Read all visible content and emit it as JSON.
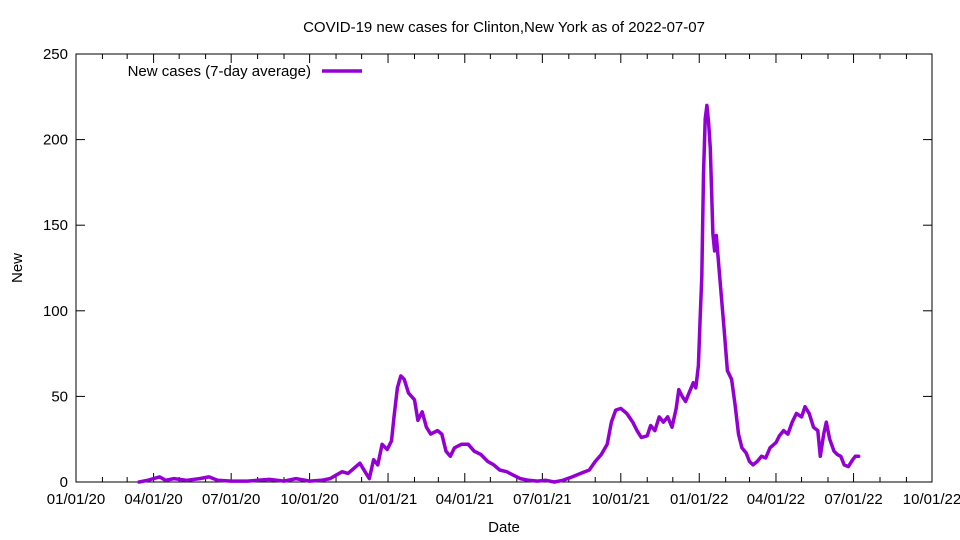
{
  "chart_data": {
    "type": "line",
    "title": "COVID-19 new cases for Clinton,New York as of 2022-07-07",
    "xlabel": "Date",
    "ylabel": "New",
    "xlim": [
      "2020-01-01",
      "2022-10-01"
    ],
    "ylim": [
      0,
      250
    ],
    "x_ticks": [
      "01/01/20",
      "04/01/20",
      "07/01/20",
      "10/01/20",
      "01/01/21",
      "04/01/21",
      "07/01/21",
      "10/01/21",
      "01/01/22",
      "04/01/22",
      "07/01/22",
      "10/01/22"
    ],
    "y_ticks": [
      0,
      50,
      100,
      150,
      200,
      250
    ],
    "grid": false,
    "legend_position": "top-left",
    "series": [
      {
        "name": "New cases (7-day average)",
        "color": "#9400d3",
        "points": [
          [
            "2020-03-15",
            0
          ],
          [
            "2020-03-25",
            1
          ],
          [
            "2020-04-01",
            2
          ],
          [
            "2020-04-08",
            3
          ],
          [
            "2020-04-15",
            1
          ],
          [
            "2020-04-25",
            2
          ],
          [
            "2020-05-10",
            1
          ],
          [
            "2020-05-25",
            2
          ],
          [
            "2020-06-05",
            3
          ],
          [
            "2020-06-15",
            1
          ],
          [
            "2020-07-01",
            0.5
          ],
          [
            "2020-07-20",
            0.5
          ],
          [
            "2020-08-01",
            1
          ],
          [
            "2020-08-15",
            1.5
          ],
          [
            "2020-09-01",
            0.5
          ],
          [
            "2020-09-15",
            2
          ],
          [
            "2020-10-01",
            0.5
          ],
          [
            "2020-10-15",
            1
          ],
          [
            "2020-10-25",
            2
          ],
          [
            "2020-11-01",
            4
          ],
          [
            "2020-11-08",
            6
          ],
          [
            "2020-11-15",
            5
          ],
          [
            "2020-11-22",
            8
          ],
          [
            "2020-11-29",
            11
          ],
          [
            "2020-12-05",
            6
          ],
          [
            "2020-12-10",
            2
          ],
          [
            "2020-12-15",
            13
          ],
          [
            "2020-12-20",
            10
          ],
          [
            "2020-12-25",
            22
          ],
          [
            "2020-12-31",
            19
          ],
          [
            "2021-01-05",
            24
          ],
          [
            "2021-01-08",
            38
          ],
          [
            "2021-01-12",
            55
          ],
          [
            "2021-01-16",
            62
          ],
          [
            "2021-01-20",
            60
          ],
          [
            "2021-01-25",
            52
          ],
          [
            "2021-02-01",
            48
          ],
          [
            "2021-02-05",
            36
          ],
          [
            "2021-02-10",
            41
          ],
          [
            "2021-02-15",
            32
          ],
          [
            "2021-02-20",
            28
          ],
          [
            "2021-02-28",
            30
          ],
          [
            "2021-03-05",
            28
          ],
          [
            "2021-03-10",
            18
          ],
          [
            "2021-03-15",
            15
          ],
          [
            "2021-03-20",
            20
          ],
          [
            "2021-03-28",
            22
          ],
          [
            "2021-04-05",
            22
          ],
          [
            "2021-04-12",
            18
          ],
          [
            "2021-04-20",
            16
          ],
          [
            "2021-04-28",
            12
          ],
          [
            "2021-05-05",
            10
          ],
          [
            "2021-05-12",
            7
          ],
          [
            "2021-05-20",
            6
          ],
          [
            "2021-05-28",
            4
          ],
          [
            "2021-06-05",
            2
          ],
          [
            "2021-06-15",
            1
          ],
          [
            "2021-06-25",
            0.5
          ],
          [
            "2021-07-05",
            1
          ],
          [
            "2021-07-15",
            0
          ],
          [
            "2021-07-25",
            1
          ],
          [
            "2021-08-05",
            3
          ],
          [
            "2021-08-15",
            5
          ],
          [
            "2021-08-25",
            7
          ],
          [
            "2021-09-01",
            12
          ],
          [
            "2021-09-08",
            16
          ],
          [
            "2021-09-15",
            22
          ],
          [
            "2021-09-20",
            35
          ],
          [
            "2021-09-25",
            42
          ],
          [
            "2021-10-01",
            43
          ],
          [
            "2021-10-08",
            40
          ],
          [
            "2021-10-15",
            35
          ],
          [
            "2021-10-20",
            30
          ],
          [
            "2021-10-25",
            26
          ],
          [
            "2021-11-01",
            27
          ],
          [
            "2021-11-05",
            33
          ],
          [
            "2021-11-10",
            30
          ],
          [
            "2021-11-15",
            38
          ],
          [
            "2021-11-20",
            35
          ],
          [
            "2021-11-25",
            38
          ],
          [
            "2021-11-30",
            32
          ],
          [
            "2021-12-05",
            43
          ],
          [
            "2021-12-08",
            54
          ],
          [
            "2021-12-12",
            50
          ],
          [
            "2021-12-16",
            47
          ],
          [
            "2021-12-20",
            52
          ],
          [
            "2021-12-25",
            58
          ],
          [
            "2021-12-28",
            55
          ],
          [
            "2021-12-31",
            68
          ],
          [
            "2022-01-02",
            95
          ],
          [
            "2022-01-04",
            120
          ],
          [
            "2022-01-06",
            180
          ],
          [
            "2022-01-08",
            212
          ],
          [
            "2022-01-10",
            220
          ],
          [
            "2022-01-12",
            210
          ],
          [
            "2022-01-14",
            195
          ],
          [
            "2022-01-17",
            145
          ],
          [
            "2022-01-19",
            135
          ],
          [
            "2022-01-21",
            144
          ],
          [
            "2022-01-25",
            120
          ],
          [
            "2022-01-30",
            90
          ],
          [
            "2022-02-03",
            65
          ],
          [
            "2022-02-08",
            60
          ],
          [
            "2022-02-12",
            45
          ],
          [
            "2022-02-16",
            28
          ],
          [
            "2022-02-20",
            20
          ],
          [
            "2022-02-25",
            17
          ],
          [
            "2022-03-01",
            12
          ],
          [
            "2022-03-05",
            10
          ],
          [
            "2022-03-10",
            12
          ],
          [
            "2022-03-15",
            15
          ],
          [
            "2022-03-20",
            14
          ],
          [
            "2022-03-25",
            20
          ],
          [
            "2022-04-01",
            23
          ],
          [
            "2022-04-05",
            27
          ],
          [
            "2022-04-10",
            30
          ],
          [
            "2022-04-15",
            28
          ],
          [
            "2022-04-20",
            35
          ],
          [
            "2022-04-25",
            40
          ],
          [
            "2022-05-01",
            38
          ],
          [
            "2022-05-05",
            44
          ],
          [
            "2022-05-10",
            40
          ],
          [
            "2022-05-15",
            32
          ],
          [
            "2022-05-20",
            30
          ],
          [
            "2022-05-23",
            15
          ],
          [
            "2022-05-27",
            28
          ],
          [
            "2022-05-30",
            35
          ],
          [
            "2022-06-03",
            25
          ],
          [
            "2022-06-08",
            18
          ],
          [
            "2022-06-12",
            16
          ],
          [
            "2022-06-16",
            15
          ],
          [
            "2022-06-20",
            10
          ],
          [
            "2022-06-25",
            9
          ],
          [
            "2022-06-30",
            13
          ],
          [
            "2022-07-03",
            15
          ],
          [
            "2022-07-07",
            15
          ]
        ]
      }
    ]
  }
}
